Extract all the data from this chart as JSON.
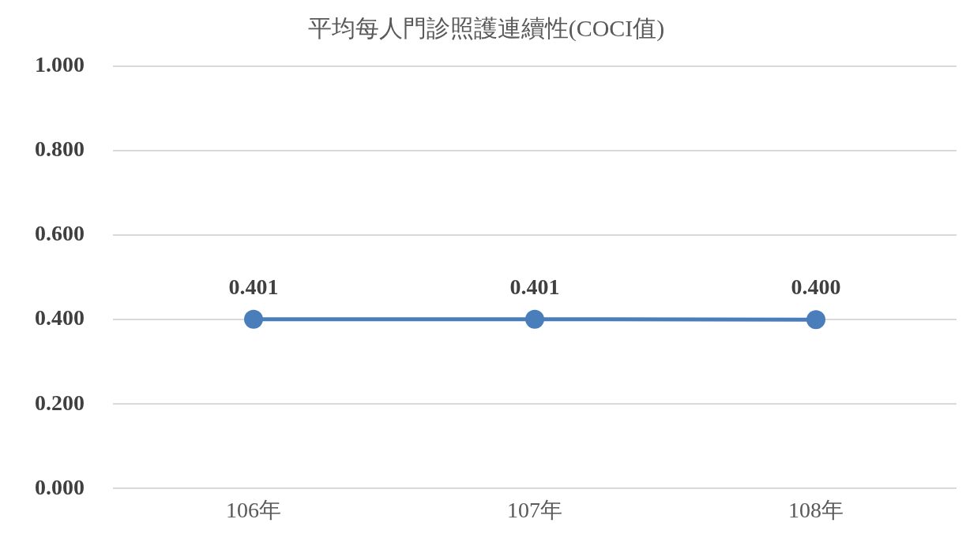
{
  "chart_data": {
    "type": "line",
    "title": "平均每人門診照護連續性(COCI值)",
    "categories": [
      "106年",
      "107年",
      "108年"
    ],
    "series": [
      {
        "color": "#4a7ebb",
        "values": [
          0.401,
          0.401,
          0.4
        ],
        "value_labels": [
          "0.401",
          "0.401",
          "0.400"
        ]
      }
    ],
    "ylim": [
      0,
      1
    ],
    "yticks": [
      {
        "value": 0,
        "label": "0.000"
      },
      {
        "value": 0.2,
        "label": "0.200"
      },
      {
        "value": 0.4,
        "label": "0.400"
      },
      {
        "value": 0.6,
        "label": "0.600"
      },
      {
        "value": 0.8,
        "label": "0.800"
      },
      {
        "value": 1,
        "label": "1.000"
      }
    ],
    "grid": "y",
    "legend": false,
    "marker": "circle",
    "line_style": "solid"
  }
}
